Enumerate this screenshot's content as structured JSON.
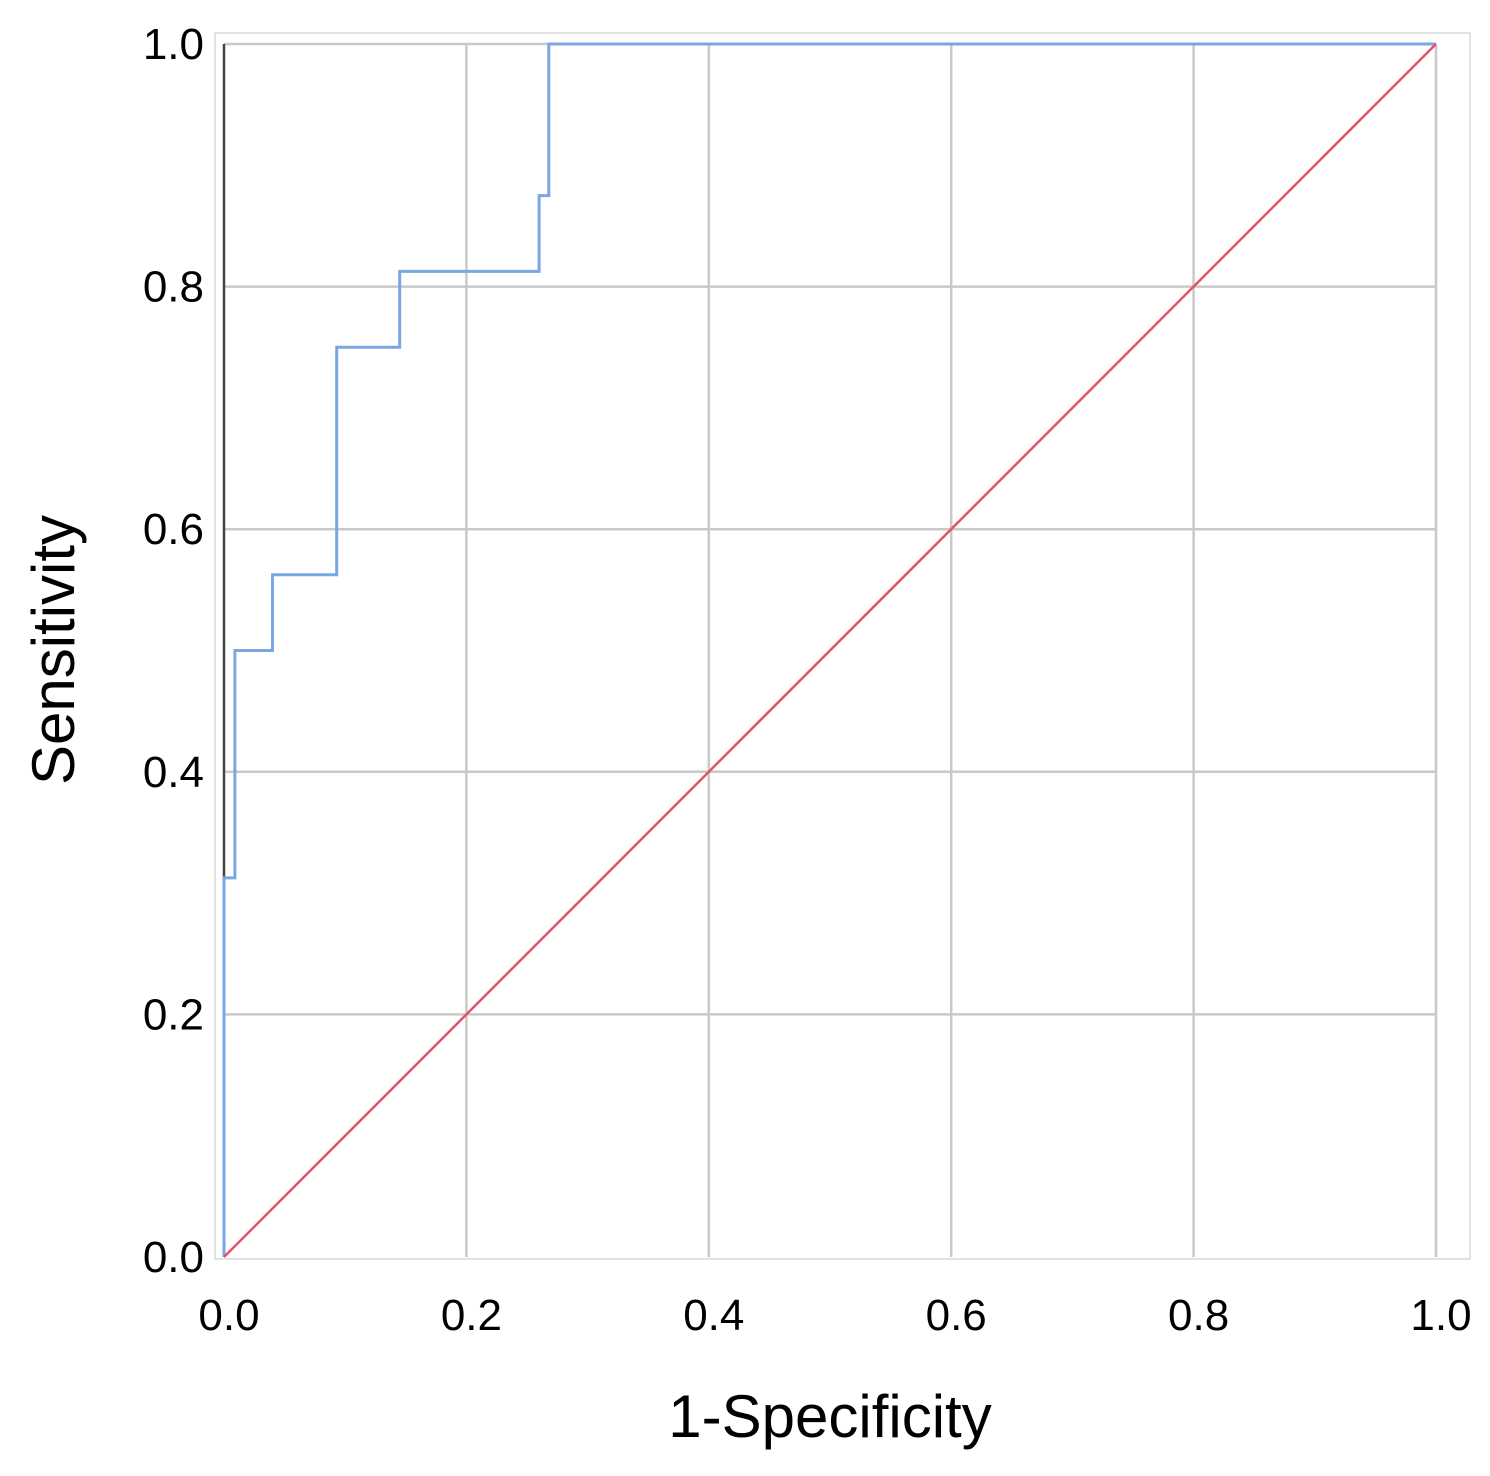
{
  "chart_data": {
    "type": "line",
    "xlabel": "1-Specificity",
    "ylabel": "Sensitivity",
    "xlim": [
      0.0,
      1.0
    ],
    "ylim": [
      0.0,
      1.0
    ],
    "x_ticks": [
      "0.0",
      "0.2",
      "0.4",
      "0.6",
      "0.8",
      "1.0"
    ],
    "y_ticks": [
      "0.0",
      "0.2",
      "0.4",
      "0.6",
      "0.8",
      "1.0"
    ],
    "grid": true,
    "colors": {
      "roc": "#7aa6e6",
      "reference": "#e5506b",
      "axis": "#444444"
    },
    "series": [
      {
        "role": "roc",
        "x": [
          0.0,
          0.0,
          0.009,
          0.009,
          0.04,
          0.04,
          0.093,
          0.093,
          0.145,
          0.145,
          0.26,
          0.26,
          0.268,
          0.268,
          1.0
        ],
        "y": [
          0.0,
          0.3125,
          0.3125,
          0.5,
          0.5,
          0.5625,
          0.5625,
          0.75,
          0.75,
          0.8125,
          0.8125,
          0.875,
          0.875,
          1.0,
          1.0
        ]
      },
      {
        "role": "reference",
        "x": [
          0.0,
          1.0
        ],
        "y": [
          0.0,
          1.0
        ]
      }
    ]
  }
}
